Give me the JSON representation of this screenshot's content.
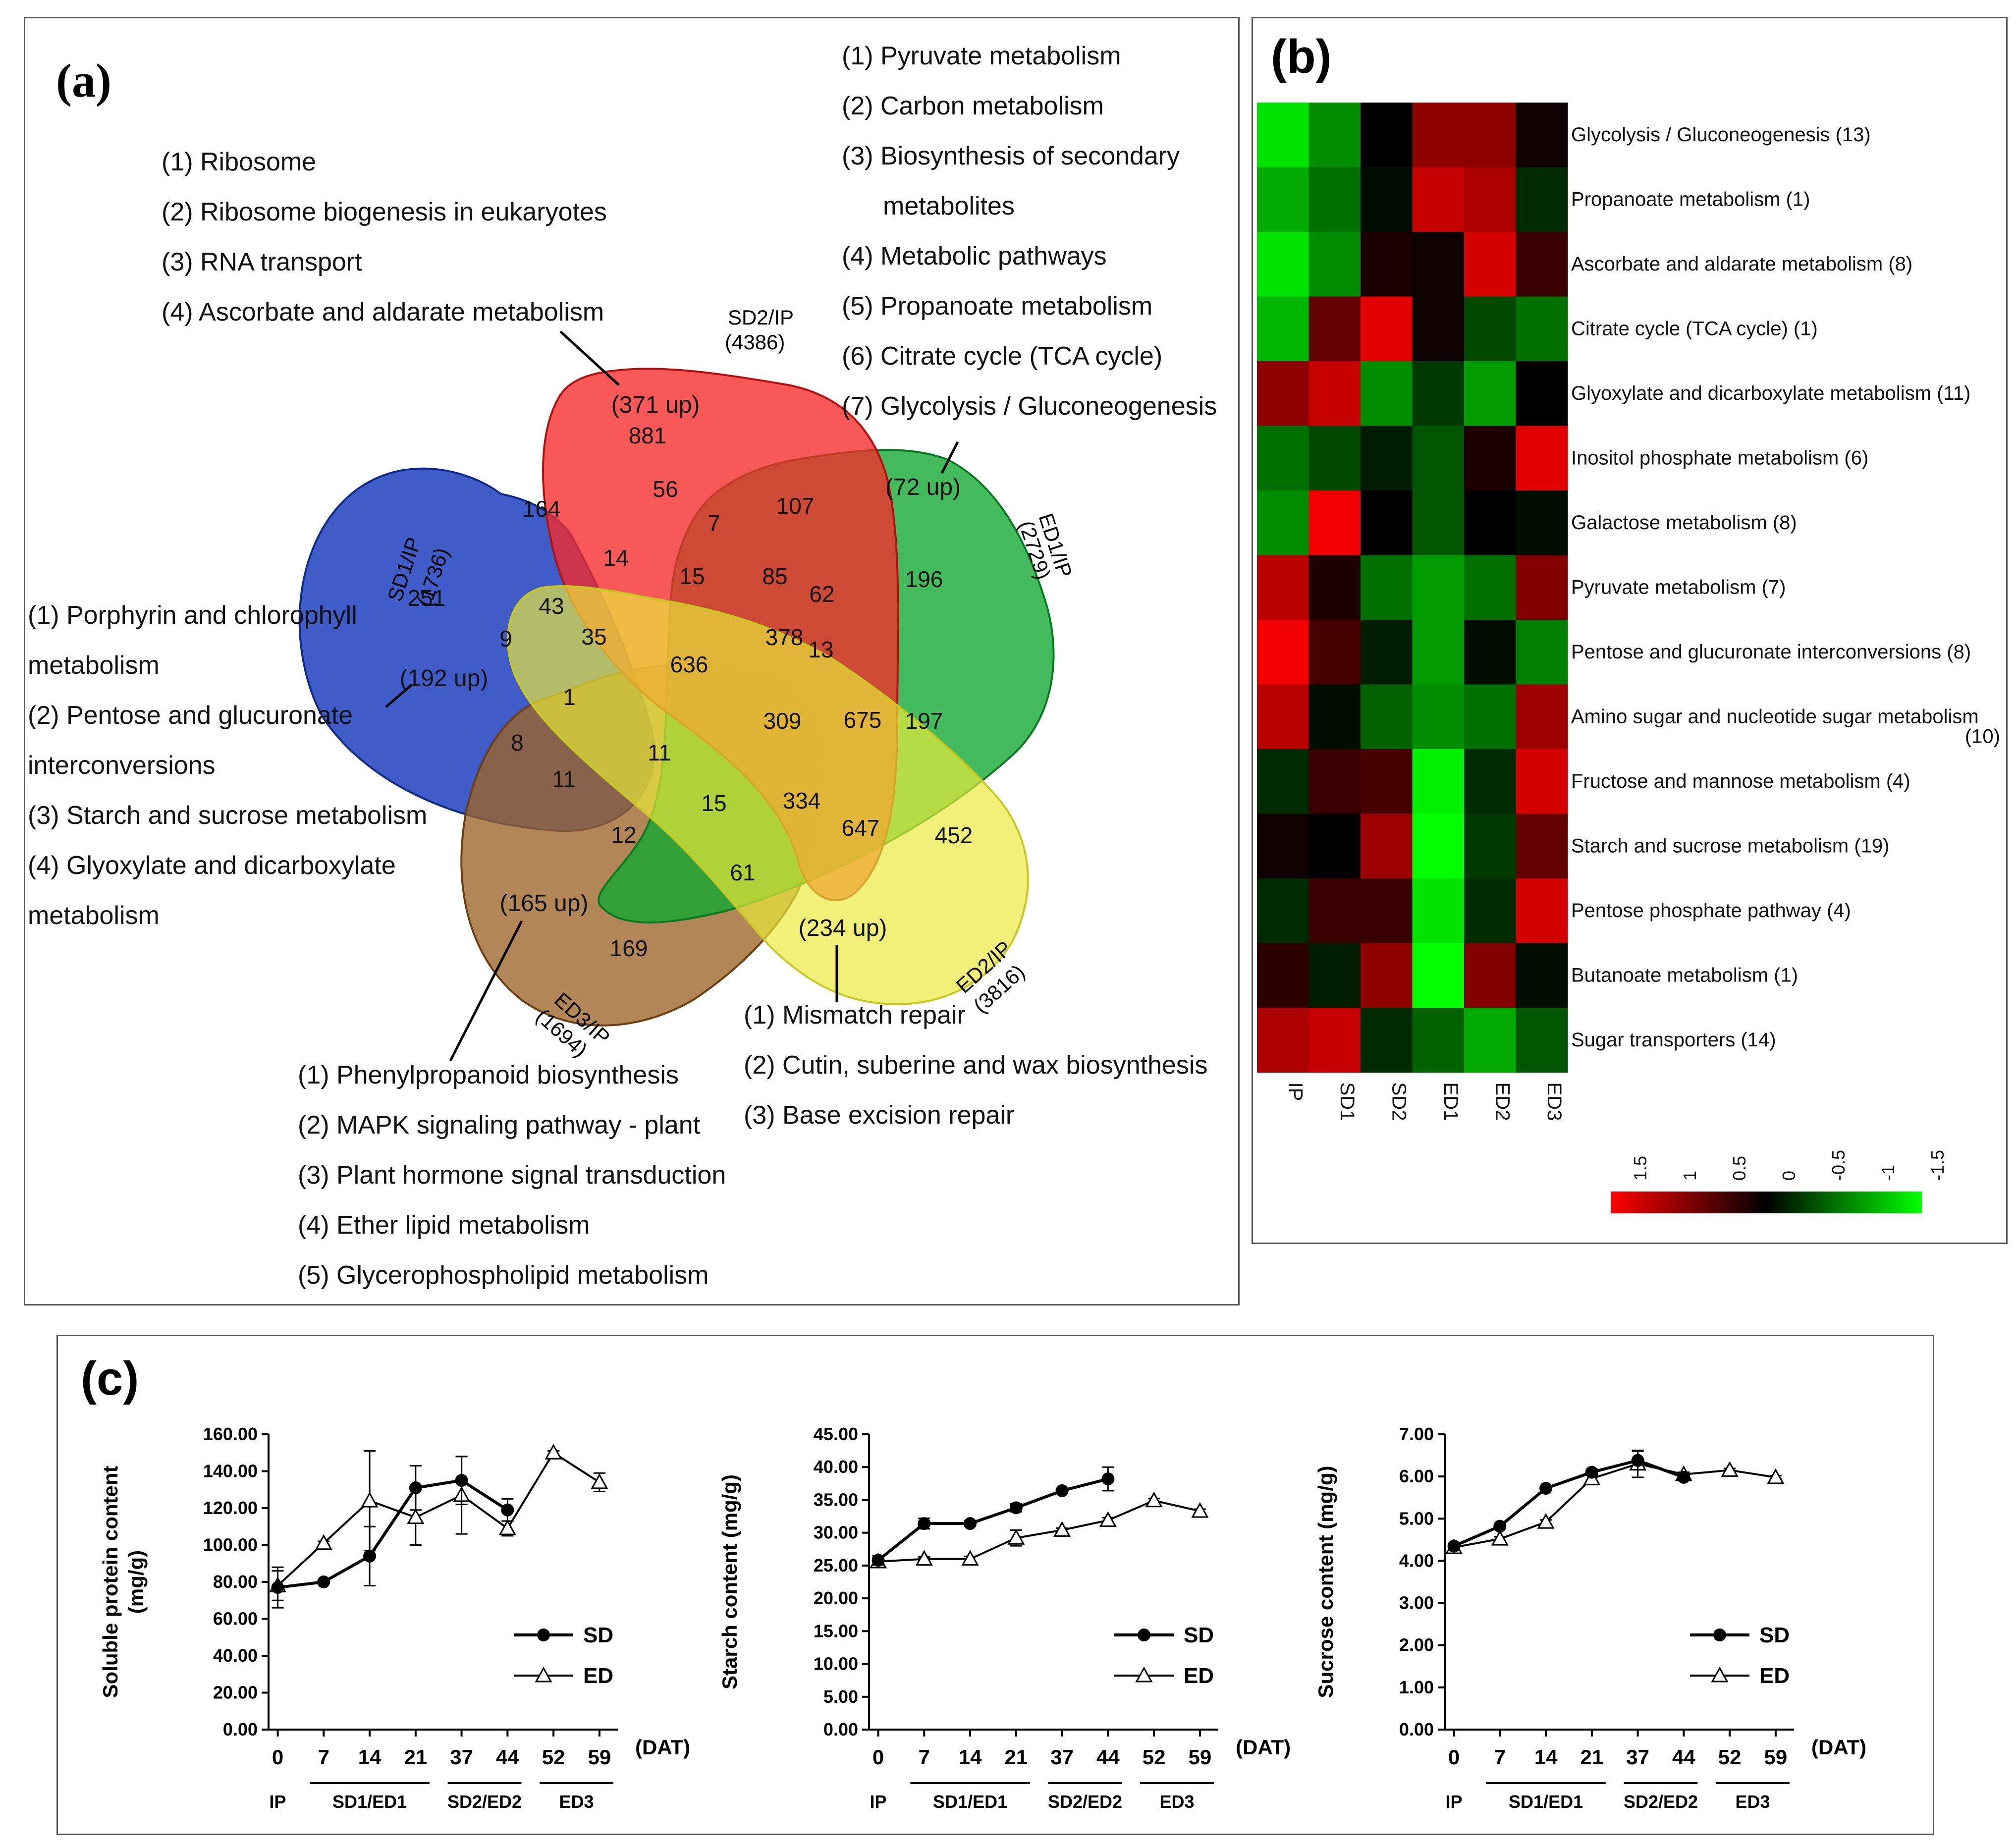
{
  "panel_a": {
    "label": "(a)",
    "sets": [
      {
        "name": "SD1/IP",
        "total": "(1736)",
        "color": "#1f3fbf"
      },
      {
        "name": "SD2/IP",
        "total": "(4386)",
        "color": "#f52a2a"
      },
      {
        "name": "ED1/IP",
        "total": "(2729)",
        "color": "#10a830"
      },
      {
        "name": "ED2/IP",
        "total": "(3816)",
        "color": "#eaea3a"
      },
      {
        "name": "ED3/IP",
        "total": "(1694)",
        "color": "#9c6428"
      }
    ],
    "region_counts": [
      "881",
      "164",
      "56",
      "7",
      "107",
      "14",
      "15",
      "85",
      "62",
      "196",
      "251",
      "43",
      "9",
      "35",
      "636",
      "378",
      "13",
      "1",
      "309",
      "675",
      "197",
      "8",
      "11",
      "11",
      "15",
      "334",
      "647",
      "452",
      "12",
      "61",
      "169"
    ],
    "up_labels": [
      "(371 up)",
      "(72 up)",
      "(192 up)",
      "(165 up)",
      "(234 up)"
    ],
    "pathways_sd2": [
      "(1) Ribosome",
      "(2) Ribosome biogenesis in eukaryotes",
      "(3) RNA transport",
      "(4) Ascorbate and aldarate metabolism"
    ],
    "pathways_ed1": [
      "(1) Pyruvate metabolism",
      "(2) Carbon metabolism",
      "(3) Biosynthesis of secondary",
      "metabolites",
      "(4) Metabolic pathways",
      "(5) Propanoate metabolism",
      "(6) Citrate cycle (TCA cycle)",
      "(7) Glycolysis / Gluconeogenesis"
    ],
    "pathways_sd1": [
      "(1) Porphyrin and chlorophyll",
      "metabolism",
      "(2) Pentose and glucuronate",
      "interconversions",
      "(3) Starch and sucrose metabolism",
      "(4) Glyoxylate and dicarboxylate",
      "metabolism"
    ],
    "pathways_ed3": [
      "(1) Phenylpropanoid biosynthesis",
      "(2) MAPK signaling pathway - plant",
      "(3) Plant hormone signal transduction",
      "(4) Ether lipid metabolism",
      "(5) Glycerophospholipid metabolism"
    ],
    "pathways_ed2": [
      "(1) Mismatch repair",
      "(2) Cutin, suberine and wax biosynthesis",
      "(3) Base excision repair"
    ]
  },
  "panel_b": {
    "label": "(b)",
    "columns": [
      "IP",
      "SD1",
      "SD2",
      "ED1",
      "ED2",
      "ED3"
    ],
    "rows": [
      {
        "name": "Glycolysis / Gluconeogenesis (13)",
        "values": [
          -1.6,
          -1.0,
          0.0,
          1.0,
          1.0,
          0.1
        ]
      },
      {
        "name": "Propanoate metabolism (1)",
        "values": [
          -1.2,
          -0.8,
          -0.1,
          1.4,
          1.2,
          -0.3
        ]
      },
      {
        "name": "Ascorbate and aldarate metabolism (8)",
        "values": [
          -1.6,
          -1.0,
          0.2,
          0.1,
          1.5,
          0.4
        ]
      },
      {
        "name": "Citrate cycle (TCA cycle) (1)",
        "values": [
          -1.3,
          0.7,
          1.6,
          0.1,
          -0.5,
          -0.8
        ]
      },
      {
        "name": "Glyoxylate and dicarboxylate metabolism (11)",
        "values": [
          1.0,
          1.4,
          -1.0,
          -0.4,
          -1.1,
          0.0
        ]
      },
      {
        "name": "Inositol phosphate metabolism (6)",
        "values": [
          -0.8,
          -0.5,
          -0.2,
          -0.6,
          0.2,
          1.6
        ]
      },
      {
        "name": "Galactose metabolism (8)",
        "values": [
          -1.0,
          1.7,
          0.0,
          -0.6,
          0.0,
          -0.1
        ]
      },
      {
        "name": "Pyruvate metabolism (7)",
        "values": [
          1.3,
          0.2,
          -0.8,
          -1.1,
          -0.8,
          0.9
        ]
      },
      {
        "name": "Pentose and glucuronate interconversions (8)",
        "values": [
          1.7,
          0.5,
          -0.2,
          -1.1,
          -0.1,
          -0.9
        ]
      },
      {
        "name": "Amino sugar and nucleotide sugar metabolism",
        "extra": "(10)",
        "values": [
          1.3,
          -0.1,
          -0.7,
          -1.0,
          -0.8,
          1.1
        ]
      },
      {
        "name": "Fructose and mannose metabolism (4)",
        "values": [
          -0.3,
          0.4,
          0.5,
          -1.7,
          -0.3,
          1.5
        ]
      },
      {
        "name": "Starch and sucrose metabolism (19)",
        "values": [
          0.1,
          0.0,
          1.1,
          -1.8,
          -0.4,
          0.7
        ]
      },
      {
        "name": "Pentose phosphate pathway (4)",
        "values": [
          -0.3,
          0.4,
          0.4,
          -1.6,
          -0.3,
          1.5
        ]
      },
      {
        "name": "Butanoate metabolism (1)",
        "values": [
          0.3,
          -0.2,
          1.0,
          -1.9,
          0.9,
          -0.1
        ]
      },
      {
        "name": "Sugar transporters (14)",
        "values": [
          1.2,
          1.4,
          -0.3,
          -0.7,
          -1.2,
          -0.6
        ]
      }
    ],
    "scale_ticks": [
      "1.5",
      "1",
      "0.5",
      "0",
      "-0.5",
      "-1",
      "-1.5"
    ],
    "colors": {
      "high": "#ff0000",
      "mid": "#000000",
      "low": "#00ff00"
    }
  },
  "panel_c": {
    "label": "(c)",
    "charts": [
      {
        "type": "line",
        "ylabel": "Soluble protein content",
        "ylabel2": "(mg/g)",
        "ylim": [
          0,
          160
        ],
        "yticks": [
          "0.00",
          "20.00",
          "40.00",
          "60.00",
          "80.00",
          "100.00",
          "120.00",
          "140.00",
          "160.00"
        ],
        "categories": [
          "0",
          "7",
          "14",
          "21",
          "37",
          "44",
          "52",
          "59"
        ],
        "xunit": "(DAT)",
        "groups": [
          "IP",
          "SD1/ED1",
          "SD2/ED2",
          "ED3"
        ],
        "series": [
          {
            "name": "SD",
            "values": [
              77,
              80,
              94,
              131,
              135,
              119
            ],
            "errors": [
              11,
              1,
              16,
              12,
              13,
              6
            ]
          },
          {
            "name": "ED",
            "values": [
              78,
              101,
              124,
              115,
              127,
              109,
              150,
              134
            ],
            "errors": [
              8,
              1,
              27,
              15,
              21,
              4,
              1,
              5
            ]
          }
        ]
      },
      {
        "type": "line",
        "ylabel": "Starch content (mg/g)",
        "ylim": [
          0,
          45
        ],
        "yticks": [
          "0.00",
          "5.00",
          "10.00",
          "15.00",
          "20.00",
          "25.00",
          "30.00",
          "35.00",
          "40.00",
          "45.00"
        ],
        "categories": [
          "0",
          "7",
          "14",
          "21",
          "37",
          "44",
          "52",
          "59"
        ],
        "xunit": "(DAT)",
        "groups": [
          "IP",
          "SD1/ED1",
          "SD2/ED2",
          "ED3"
        ],
        "series": [
          {
            "name": "SD",
            "values": [
              25.8,
              31.4,
              31.4,
              33.8,
              36.4,
              38.2
            ],
            "errors": [
              0.7,
              0.8,
              0.4,
              0.6,
              0.3,
              1.8
            ]
          },
          {
            "name": "ED",
            "values": [
              25.6,
              26.0,
              26.0,
              29.2,
              30.4,
              31.9,
              34.9,
              33.3
            ],
            "errors": [
              0.6,
              0.3,
              0.4,
              1.2,
              0.3,
              0.4,
              0.3,
              0.3
            ]
          }
        ]
      },
      {
        "type": "line",
        "ylabel": "Sucrose content (mg/g)",
        "ylim": [
          0,
          7
        ],
        "yticks": [
          "0.00",
          "1.00",
          "2.00",
          "3.00",
          "4.00",
          "5.00",
          "6.00",
          "7.00"
        ],
        "categories": [
          "0",
          "7",
          "14",
          "21",
          "37",
          "44",
          "52",
          "59"
        ],
        "xunit": "(DAT)",
        "groups": [
          "IP",
          "SD1/ED1",
          "SD2/ED2",
          "ED3"
        ],
        "series": [
          {
            "name": "SD",
            "values": [
              4.35,
              4.82,
              5.72,
              6.1,
              6.38,
              5.98
            ],
            "errors": [
              0.05,
              0.05,
              0.05,
              0.07,
              0.22,
              0.08
            ]
          },
          {
            "name": "ED",
            "values": [
              4.32,
              4.52,
              4.92,
              5.95,
              6.3,
              6.05,
              6.15,
              5.98
            ],
            "errors": [
              0.05,
              0.05,
              0.05,
              0.12,
              0.32,
              0.05,
              0.04,
              0.04
            ]
          }
        ]
      }
    ]
  }
}
